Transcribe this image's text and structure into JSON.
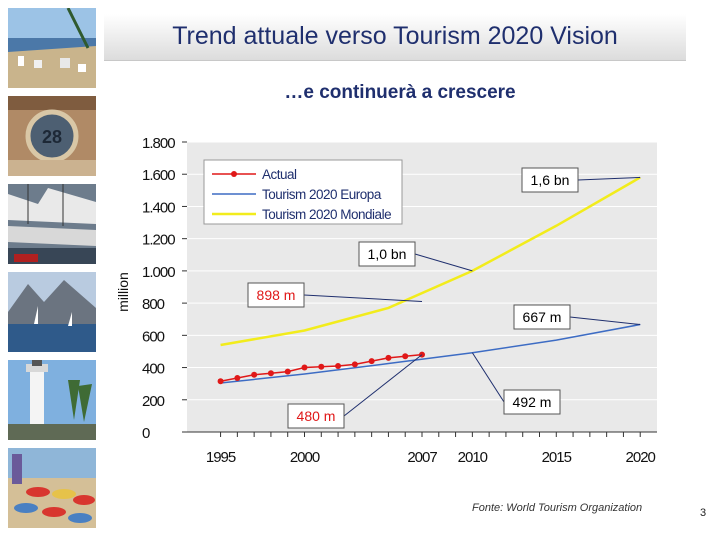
{
  "slide": {
    "title": "Trend attuale verso Tourism 2020 Vision",
    "subtitle": "…e continuerà a crescere",
    "source": "Fonte: World Tourism Organization",
    "page_number": "3"
  },
  "photos": [
    "beach-photo",
    "clock-building-photo",
    "harbor-boats-photo",
    "mountain-coast-photo",
    "lighthouse-photo",
    "beach-umbrellas-photo"
  ],
  "chart_data": {
    "type": "line",
    "ylabel": "million",
    "xlabel": "",
    "xlim": [
      1993,
      2021
    ],
    "ylim": [
      0,
      1800
    ],
    "x_ticks": [
      1995,
      2000,
      2007,
      2010,
      2015,
      2020
    ],
    "x_tick_labels": [
      "1995",
      "2000",
      "2007",
      "2010",
      "2015",
      "2020"
    ],
    "y_ticks": [
      0,
      200,
      400,
      600,
      800,
      1000,
      1200,
      1400,
      1600,
      1800
    ],
    "y_tick_labels": [
      "0",
      "200",
      "400",
      "600",
      "800",
      "1.000",
      "1.200",
      "1.400",
      "1.600",
      "1.800"
    ],
    "legend_position": "top-left",
    "series": [
      {
        "name": "Actual",
        "color": "#e01818",
        "marker": "circle",
        "x": [
          1995,
          1996,
          1997,
          1998,
          1999,
          2000,
          2001,
          2002,
          2003,
          2004,
          2005,
          2006,
          2007
        ],
        "values": [
          315,
          335,
          355,
          365,
          375,
          400,
          405,
          410,
          420,
          440,
          460,
          470,
          480
        ]
      },
      {
        "name": "Tourism 2020 Europa",
        "color": "#3d6cc4",
        "x": [
          1995,
          2000,
          2005,
          2010,
          2015,
          2020
        ],
        "values": [
          304,
          360,
          425,
          492,
          570,
          667
        ]
      },
      {
        "name": "Tourism 2020 Mondiale",
        "color": "#f2ec1c",
        "x": [
          1995,
          2000,
          2005,
          2010,
          2015,
          2020
        ],
        "values": [
          540,
          630,
          770,
          1000,
          1280,
          1580
        ]
      }
    ],
    "annotations": [
      {
        "text": "1,6 bn",
        "color": "#000000",
        "x": 2020,
        "y": 1580
      },
      {
        "text": "1,0 bn",
        "color": "#000000",
        "x": 2010,
        "y": 1000
      },
      {
        "text": "898 m",
        "color": "#e01818",
        "x": 2007,
        "y": 810
      },
      {
        "text": "667 m",
        "color": "#000000",
        "x": 2020,
        "y": 667
      },
      {
        "text": "492 m",
        "color": "#000000",
        "x": 2010,
        "y": 492
      },
      {
        "text": "480 m",
        "color": "#e01818",
        "x": 2007,
        "y": 480
      }
    ]
  }
}
